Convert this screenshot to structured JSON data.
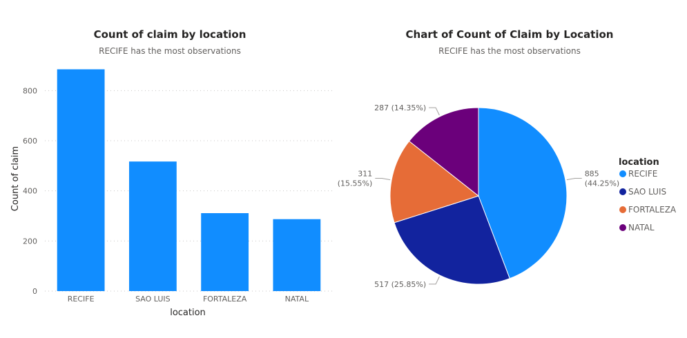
{
  "chart_data": [
    {
      "type": "bar",
      "title": "Count of claim by location",
      "subtitle": "RECIFE has the most observations",
      "xlabel": "location",
      "ylabel": "Count of claim",
      "categories": [
        "RECIFE",
        "SAO LUIS",
        "FORTALEZA",
        "NATAL"
      ],
      "values": [
        885,
        517,
        311,
        287
      ],
      "ylim": [
        0,
        900
      ],
      "yticks": [
        0,
        200,
        400,
        600,
        800
      ],
      "grid": true,
      "color": "#118DFF"
    },
    {
      "type": "pie",
      "title": "Chart of Count of Claim by Location",
      "subtitle": "RECIFE has the most observations",
      "legend_title": "location",
      "legend_position": "right",
      "slices": [
        {
          "label": "RECIFE",
          "value": 885,
          "data_label": "885\n(44.25%)",
          "color": "#118DFF"
        },
        {
          "label": "SAO LUIS",
          "value": 517,
          "data_label": "517 (25.85%)",
          "color": "#12239E"
        },
        {
          "label": "FORTALEZA",
          "value": 311,
          "data_label": "311\n(15.55%)",
          "color": "#E66C37"
        },
        {
          "label": "NATAL",
          "value": 287,
          "data_label": "287 (14.35%)",
          "color": "#6B007B"
        }
      ]
    }
  ]
}
